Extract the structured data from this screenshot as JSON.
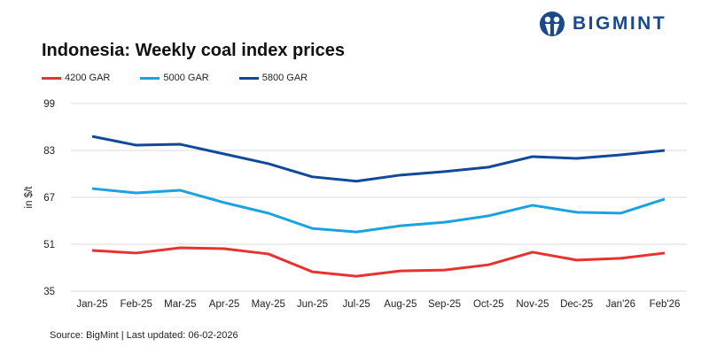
{
  "brand": {
    "name": "BIGMINT",
    "color": "#1b4a8c"
  },
  "chart_data": {
    "type": "line",
    "title": "Indonesia: Weekly coal index prices",
    "ylabel": "in $/t",
    "xlabel": "",
    "ylim": [
      35,
      99
    ],
    "yticks": [
      35,
      51,
      67,
      83,
      99
    ],
    "grid": true,
    "legend": "top-left",
    "categories": [
      "Jan-25",
      "Feb-25",
      "Mar-25",
      "Apr-25",
      "May-25",
      "Jun-25",
      "Jul-25",
      "Aug-25",
      "Sep-25",
      "Oct-25",
      "Nov-25",
      "Dec-25",
      "Jan'26",
      "Feb'26"
    ],
    "series": [
      {
        "name": "4200 GAR",
        "color": "#e8322f",
        "values": [
          48.9,
          48.0,
          49.8,
          49.5,
          47.7,
          41.6,
          40.1,
          41.9,
          42.2,
          44.0,
          48.3,
          45.6,
          46.2,
          48.0
        ]
      },
      {
        "name": "5000 GAR",
        "color": "#1aa3e0",
        "values": [
          70.0,
          68.5,
          69.4,
          65.2,
          61.6,
          56.4,
          55.2,
          57.3,
          58.5,
          60.7,
          64.3,
          61.9,
          61.6,
          66.4
        ]
      },
      {
        "name": "5800 GAR",
        "color": "#0f4a9a",
        "values": [
          87.8,
          84.8,
          85.1,
          81.8,
          78.5,
          74.0,
          72.5,
          74.6,
          75.8,
          77.3,
          80.9,
          80.3,
          81.5,
          83.0
        ]
      }
    ]
  },
  "footer": {
    "source": "Source: BigMint | Last updated: 06-02-2026"
  }
}
